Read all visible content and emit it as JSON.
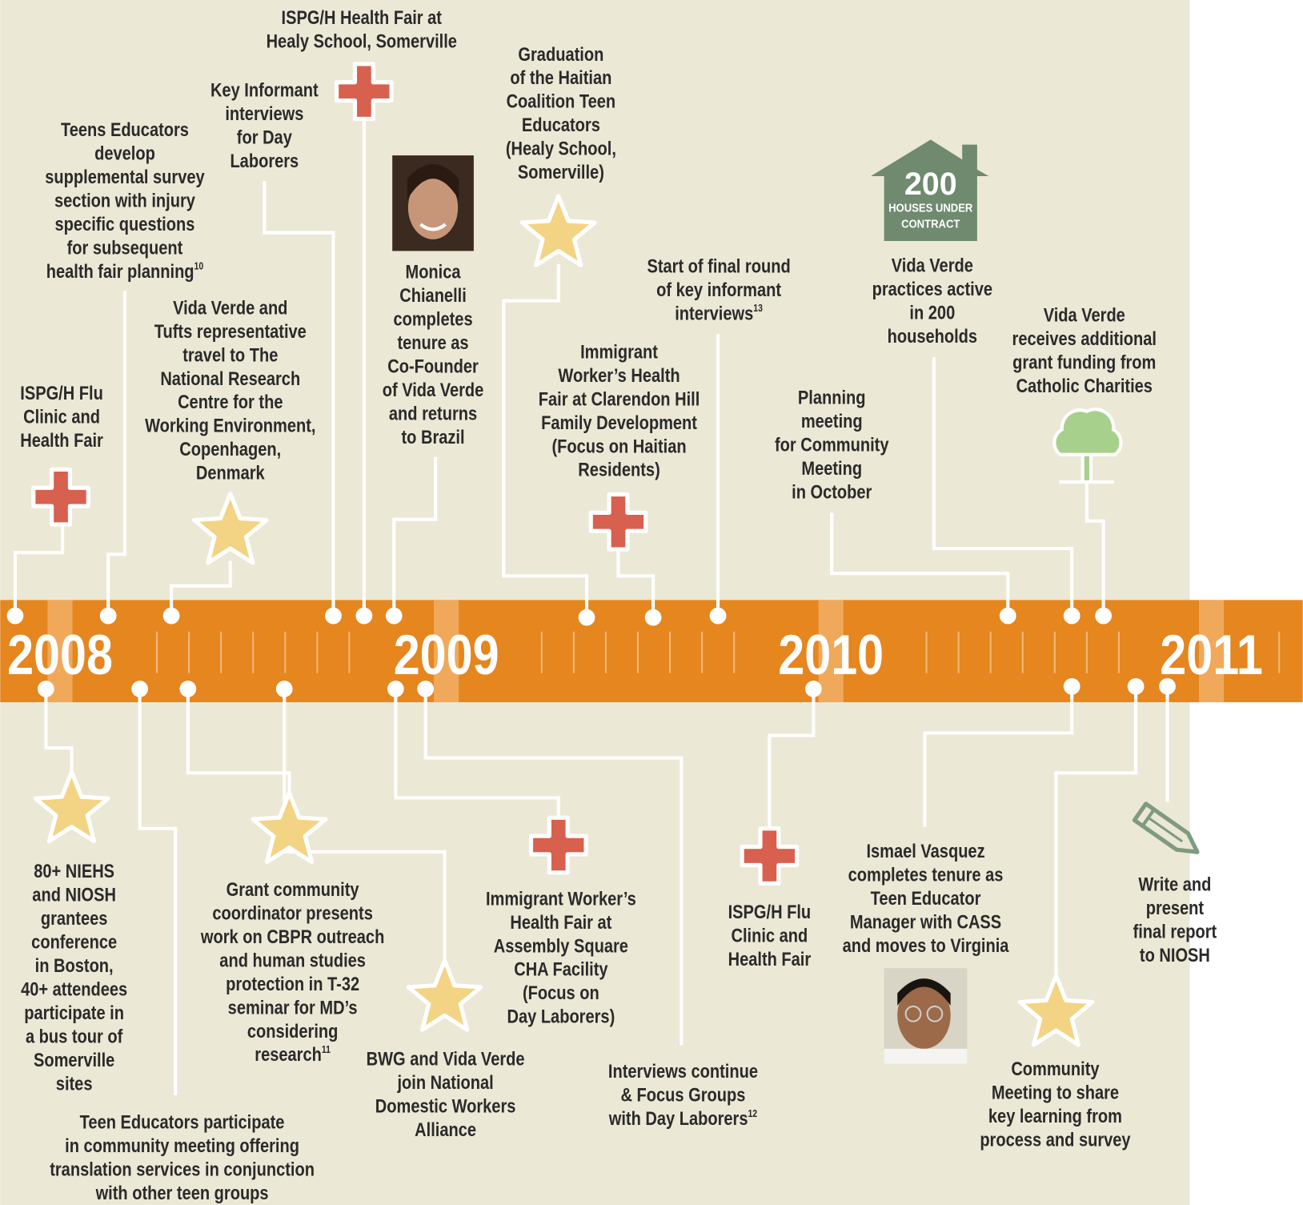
{
  "years": [
    "2008",
    "2009",
    "2010",
    "2011"
  ],
  "top_events": [
    {
      "lines": [
        "ISPG/H Flu",
        "Clinic and",
        "Health Fair"
      ]
    },
    {
      "lines": [
        "Teens Educators",
        "develop",
        "supplemental survey",
        "section with injury",
        "specific questions",
        "for subsequent",
        "health fair planning"
      ],
      "note": "10"
    },
    {
      "lines": [
        "Vida Verde and",
        "Tufts representative",
        "travel to The",
        "National Research",
        "Centre for the",
        "Working Environment,",
        "Copenhagen,",
        "Denmark"
      ]
    },
    {
      "lines": [
        "Key Informant",
        "interviews",
        "for Day",
        "Laborers"
      ]
    },
    {
      "lines": [
        "ISPG/H Health Fair at",
        "Healy School, Somerville"
      ]
    },
    {
      "lines": [
        "Monica",
        "Chianelli",
        "completes",
        "tenure as",
        "Co-Founder",
        "of Vida Verde",
        "and returns",
        "to Brazil"
      ]
    },
    {
      "lines": [
        "Graduation",
        "of the Haitian",
        "Coalition Teen",
        "Educators",
        "(Healy School,",
        "Somerville)"
      ]
    },
    {
      "lines": [
        "Immigrant",
        "Worker’s Health",
        "Fair at Clarendon Hill",
        "Family Development",
        "(Focus on Haitian",
        "Residents)"
      ]
    },
    {
      "lines": [
        "Start of final round",
        "of key informant",
        "interviews"
      ],
      "note": "13"
    },
    {
      "lines": [
        "Planning",
        "meeting",
        "for Community",
        "Meeting",
        "in October"
      ]
    },
    {
      "lines": [
        "Vida Verde",
        "practices active",
        "in 200",
        "households"
      ]
    },
    {
      "lines": [
        "Vida Verde",
        "receives additional",
        "grant funding from",
        "Catholic Charities"
      ]
    }
  ],
  "house": {
    "number": "200",
    "caption": [
      "HOUSES UNDER",
      "CONTRACT"
    ]
  },
  "bottom_events": [
    {
      "lines": [
        "80+ NIEHS",
        "and NIOSH",
        "grantees",
        "conference",
        "in Boston,",
        "40+ attendees",
        "participate in",
        "a bus tour of",
        "Somerville",
        "sites"
      ]
    },
    {
      "lines": [
        "Teen Educators participate",
        "in community meeting offering",
        "translation services in conjunction",
        "with other teen groups"
      ]
    },
    {
      "lines": [
        "Grant community",
        "coordinator presents",
        "work on CBPR outreach",
        "and human studies",
        "protection in T-32",
        "seminar for MD’s",
        "considering",
        "research"
      ],
      "note": "11"
    },
    {
      "lines": [
        "BWG and Vida Verde",
        "join National",
        "Domestic Workers",
        "Alliance"
      ]
    },
    {
      "lines": [
        "Immigrant Worker’s",
        "Health Fair at",
        "Assembly Square",
        "CHA Facility",
        "(Focus on",
        "Day Laborers)"
      ]
    },
    {
      "lines": [
        "Interviews continue",
        "& Focus Groups",
        "with Day Laborers"
      ],
      "note": "12"
    },
    {
      "lines": [
        "ISPG/H Flu",
        "Clinic and",
        "Health Fair"
      ]
    },
    {
      "lines": [
        "Ismael Vasquez",
        "completes tenure as",
        "Teen Educator",
        "Manager with CASS",
        "and moves to Virginia"
      ]
    },
    {
      "lines": [
        "Community",
        "Meeting to share",
        "key learning from",
        "process and survey"
      ]
    },
    {
      "lines": [
        "Write and",
        "present",
        "final report",
        "to NIOSH"
      ]
    }
  ]
}
